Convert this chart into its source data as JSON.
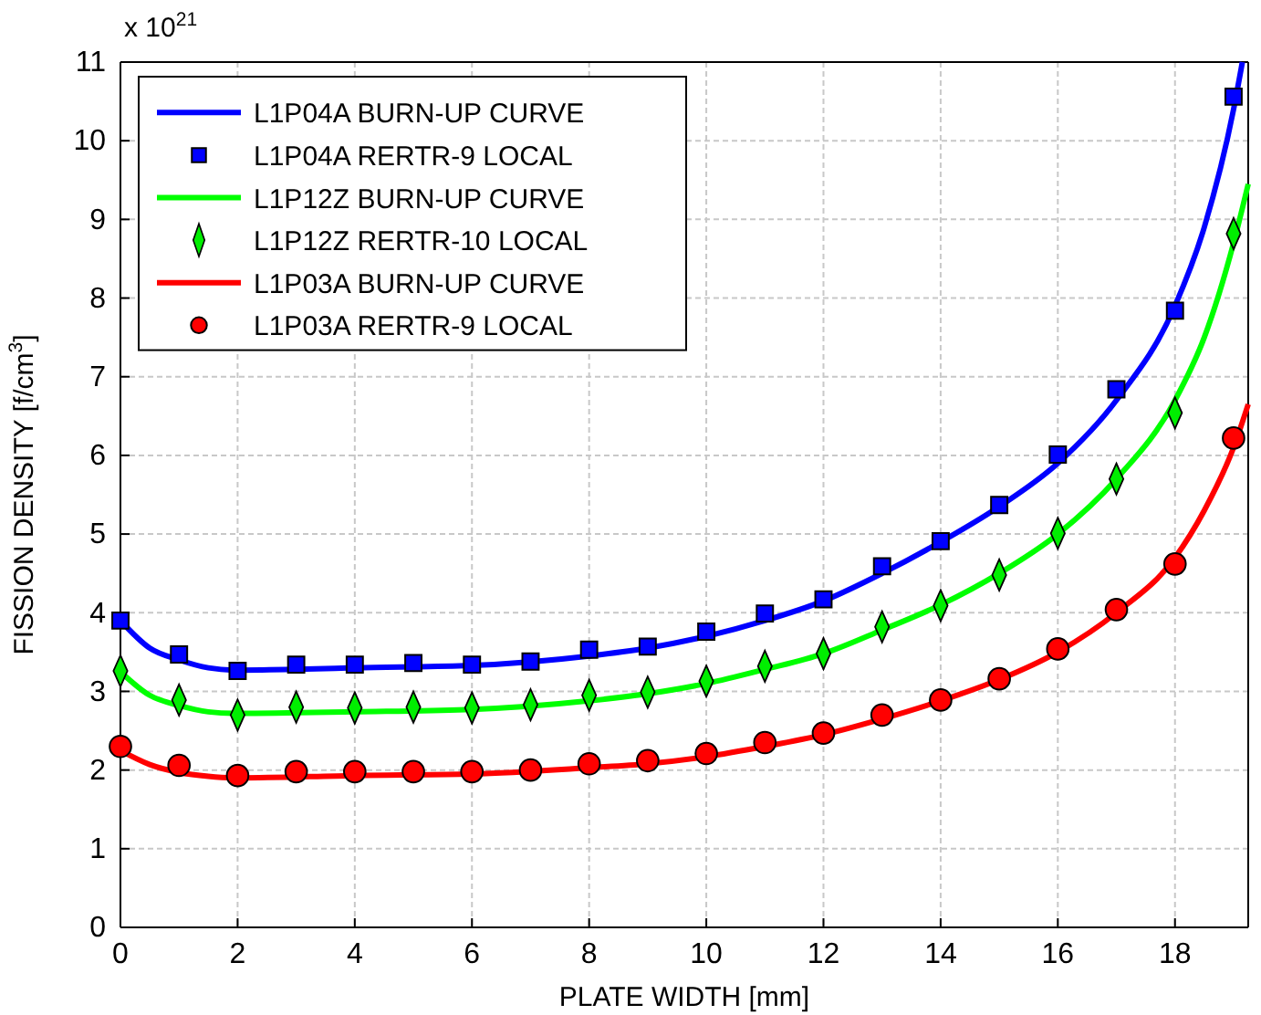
{
  "chart_data": {
    "type": "line",
    "xlabel": "PLATE WIDTH [mm]",
    "ylabel": "FISSION DENSITY [f/cm$^{3}$]",
    "annotations": [
      "x 10$^{21}$"
    ],
    "xlim": [
      0,
      19.25
    ],
    "xticks": [
      0,
      2,
      4,
      6,
      8,
      10,
      12,
      14,
      16,
      18
    ],
    "ylim": [
      0,
      11
    ],
    "yticks": [
      0,
      1,
      2,
      3,
      4,
      5,
      6,
      7,
      8,
      9,
      10,
      11
    ],
    "grid": true,
    "legend": "top left",
    "series": [
      {
        "name": "L1P04A BURN-UP CURVE",
        "marker": "none",
        "color": "#0000ff",
        "x": [
          0,
          0.5,
          1,
          1.5,
          2,
          3,
          4,
          6,
          8,
          9,
          10,
          11,
          12,
          13,
          14,
          15,
          16,
          17,
          18,
          18.5,
          19,
          19.15
        ],
        "values": [
          3.9,
          3.55,
          3.4,
          3.3,
          3.27,
          3.28,
          3.3,
          3.33,
          3.45,
          3.55,
          3.7,
          3.9,
          4.15,
          4.5,
          4.9,
          5.35,
          5.9,
          6.7,
          7.9,
          8.9,
          10.4,
          11
        ]
      },
      {
        "name": "L1P04A RERTR-9 LOCAL",
        "type": "scatter",
        "marker": "square",
        "color": "#0000ff",
        "x": [
          0,
          1,
          2,
          3,
          4,
          5,
          6,
          7,
          8,
          9,
          10,
          11,
          12,
          13,
          14,
          15,
          16,
          17,
          18,
          19
        ],
        "values": [
          3.9,
          3.47,
          3.26,
          3.34,
          3.34,
          3.36,
          3.34,
          3.38,
          3.53,
          3.57,
          3.76,
          3.99,
          4.17,
          4.59,
          4.91,
          5.37,
          6.01,
          6.84,
          7.84,
          10.56
        ]
      },
      {
        "name": "L1P12Z BURN-UP CURVE",
        "marker": "none",
        "color": "#00ff00",
        "x": [
          0,
          0.5,
          1,
          1.5,
          2,
          4,
          6,
          8,
          9,
          10,
          11,
          12,
          13,
          14,
          15,
          16,
          17,
          18,
          18.5,
          19,
          19.25
        ],
        "values": [
          3.25,
          2.95,
          2.82,
          2.74,
          2.72,
          2.74,
          2.77,
          2.88,
          2.97,
          3.1,
          3.28,
          3.48,
          3.78,
          4.1,
          4.5,
          5.0,
          5.7,
          6.7,
          7.5,
          8.7,
          9.45
        ]
      },
      {
        "name": "L1P12Z RERTR-10 LOCAL",
        "type": "scatter",
        "marker": "diamond",
        "color": "#00ee00",
        "x": [
          0,
          1,
          2,
          3,
          4,
          5,
          6,
          7,
          8,
          9,
          10,
          11,
          12,
          13,
          14,
          15,
          16,
          17,
          18,
          19
        ],
        "values": [
          3.26,
          2.89,
          2.7,
          2.8,
          2.79,
          2.8,
          2.79,
          2.83,
          2.95,
          2.99,
          3.13,
          3.32,
          3.48,
          3.82,
          4.09,
          4.48,
          5.01,
          5.7,
          6.54,
          8.82
        ]
      },
      {
        "name": "L1P03A BURN-UP CURVE",
        "marker": "none",
        "color": "#ff0000",
        "x": [
          0,
          0.5,
          1,
          1.5,
          2,
          4,
          6,
          8,
          9,
          10,
          11,
          12,
          13,
          14,
          15,
          16,
          17,
          18,
          18.5,
          19,
          19.25
        ],
        "values": [
          2.25,
          2.07,
          1.97,
          1.92,
          1.9,
          1.93,
          1.95,
          2.03,
          2.08,
          2.17,
          2.3,
          2.45,
          2.65,
          2.88,
          3.15,
          3.5,
          4.0,
          4.7,
          5.3,
          6.1,
          6.65
        ]
      },
      {
        "name": "L1P03A RERTR-9 LOCAL",
        "type": "scatter",
        "marker": "circle",
        "color": "#ff0000",
        "x": [
          0,
          1,
          2,
          3,
          4,
          5,
          6,
          7,
          8,
          9,
          10,
          11,
          12,
          13,
          14,
          15,
          16,
          17,
          18,
          19
        ],
        "values": [
          2.3,
          2.06,
          1.93,
          1.98,
          1.98,
          1.98,
          1.98,
          2.0,
          2.08,
          2.12,
          2.21,
          2.35,
          2.47,
          2.7,
          2.89,
          3.16,
          3.54,
          4.04,
          4.62,
          6.22
        ]
      }
    ]
  }
}
